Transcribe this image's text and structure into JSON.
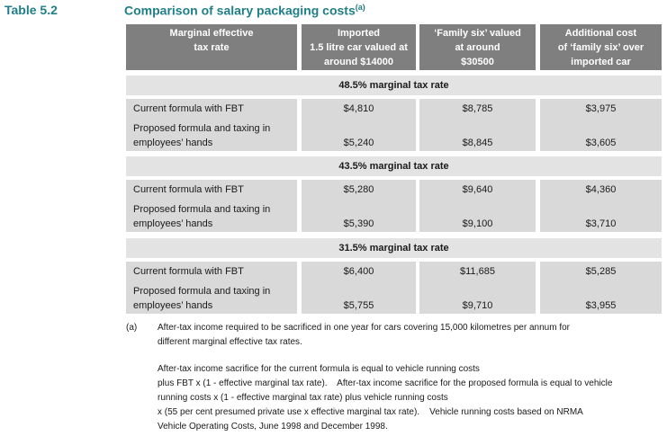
{
  "header": {
    "label": "Table 5.2",
    "title": "Comparison of salary packaging costs",
    "title_note": "(a)"
  },
  "table": {
    "columns": [
      [
        "Marginal effective",
        "tax rate"
      ],
      [
        "Imported",
        "1.5 litre car valued at",
        "around $14000"
      ],
      [
        "‘Family six’ valued",
        "at around",
        "$30500"
      ],
      [
        "Additional cost",
        "of ‘family six’ over",
        "imported car"
      ]
    ],
    "sections": [
      {
        "title": "48.5% marginal tax rate",
        "rows": [
          {
            "label": [
              "Current formula with FBT"
            ],
            "values": [
              "$4,810",
              "$8,785",
              "$3,975"
            ]
          },
          {
            "label": [
              "Proposed formula and taxing in",
              "employees’ hands"
            ],
            "values": [
              "$5,240",
              "$8,845",
              "$3,605"
            ]
          }
        ]
      },
      {
        "title": "43.5% marginal tax rate",
        "rows": [
          {
            "label": [
              "Current formula with FBT"
            ],
            "values": [
              "$5,280",
              "$9,640",
              "$4,360"
            ]
          },
          {
            "label": [
              "Proposed formula and taxing in",
              "employees’ hands"
            ],
            "values": [
              "$5,390",
              "$9,100",
              "$3,710"
            ]
          }
        ]
      },
      {
        "title": "31.5% marginal tax rate",
        "rows": [
          {
            "label": [
              "Current formula with FBT"
            ],
            "values": [
              "$6,400",
              "$11,685",
              "$5,285"
            ]
          },
          {
            "label": [
              "Proposed formula and taxing in",
              "employees’ hands"
            ],
            "values": [
              "$5,755",
              "$9,710",
              "$3,955"
            ]
          }
        ]
      }
    ]
  },
  "footnote": {
    "marker": "(a)",
    "paragraphs": [
      [
        "After-tax income required to be sacrificed in one year for cars covering 15,000 kilometres per annum for",
        "different marginal effective tax rates."
      ],
      [
        "After-tax income sacrifice for the current formula is equal to vehicle running costs",
        "plus FBT x (1 - effective marginal tax rate).    After-tax income sacrifice for the proposed formula is equal to vehicle",
        "running costs x (1 - effective marginal tax rate) plus vehicle running costs",
        "x (55 per cent presumed private use x effective marginal tax rate).    Vehicle running costs based on NRMA",
        "Vehicle Operating Costs, June 1998 and December 1998."
      ]
    ]
  }
}
